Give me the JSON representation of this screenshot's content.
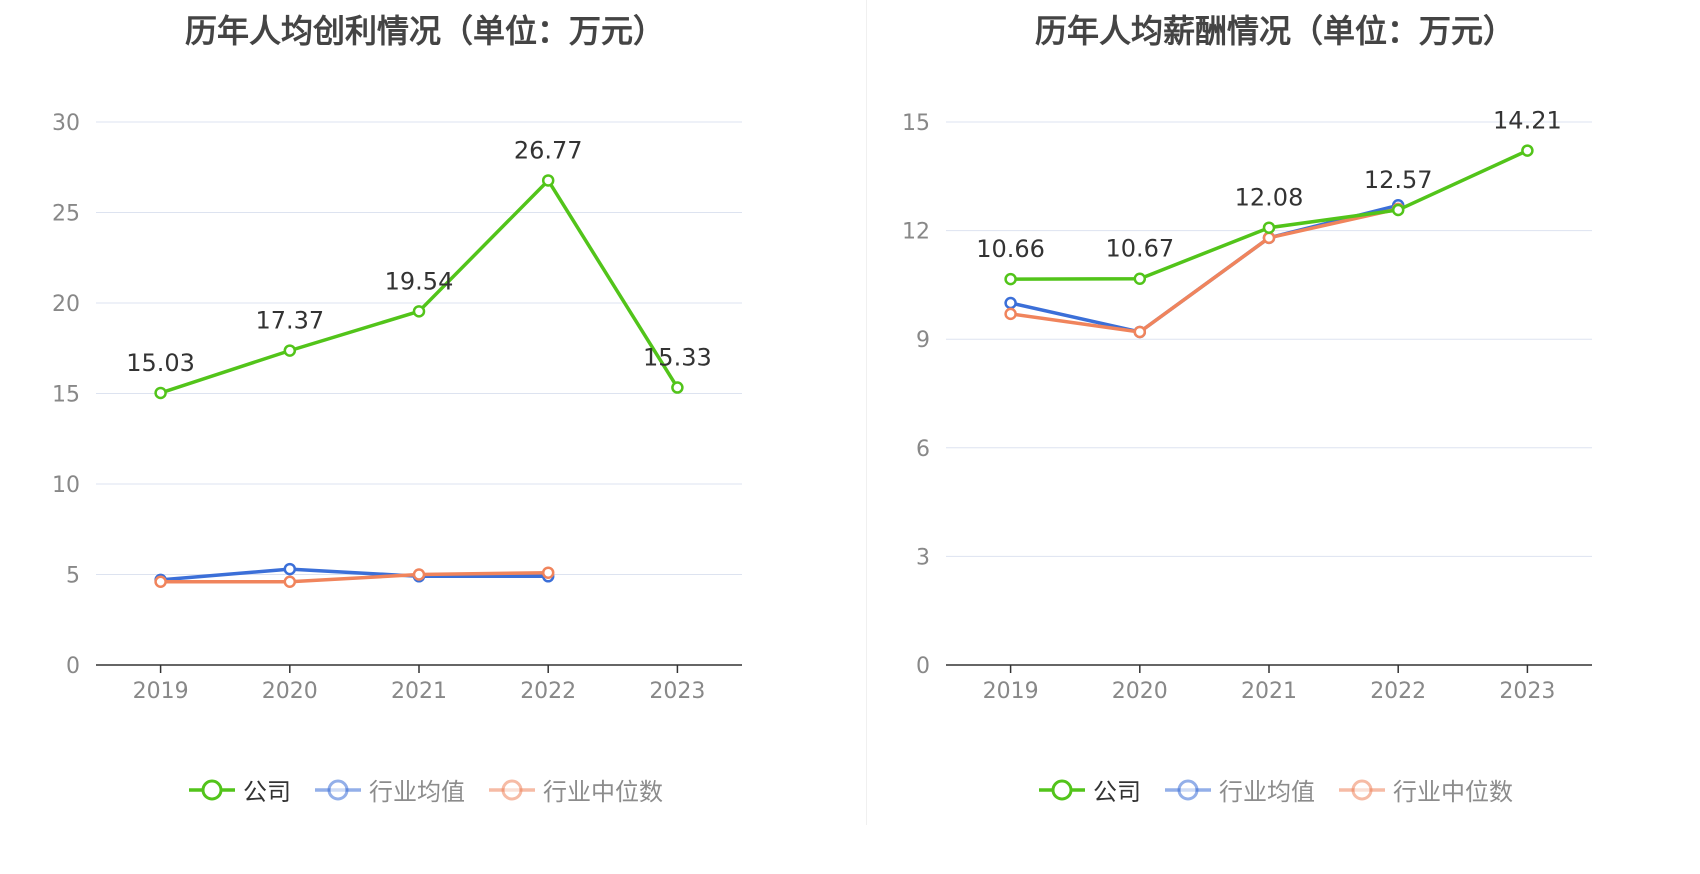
{
  "colors": {
    "company": "#52c41a",
    "avg": "#3b6fd8",
    "median": "#f0845c",
    "grid": "#dde3f0",
    "axis": "#333333",
    "tick": "#888888",
    "label": "#333333"
  },
  "chart_data": [
    {
      "type": "line",
      "title": "历年人均创利情况（单位：万元）",
      "categories": [
        "2019",
        "2020",
        "2021",
        "2022",
        "2023"
      ],
      "ylim": [
        0,
        30
      ],
      "yticks": [
        0,
        5,
        10,
        15,
        20,
        25,
        30
      ],
      "grid": true,
      "legend_position": "bottom",
      "series": [
        {
          "name": "公司",
          "key": "company",
          "values": [
            15.03,
            17.37,
            19.54,
            26.77,
            15.33
          ],
          "labels": [
            "15.03",
            "17.37",
            "19.54",
            "26.77",
            "15.33"
          ]
        },
        {
          "name": "行业均值",
          "key": "avg",
          "values": [
            4.7,
            5.3,
            4.9,
            4.9,
            null
          ]
        },
        {
          "name": "行业中位数",
          "key": "median",
          "values": [
            4.6,
            4.6,
            5.0,
            5.1,
            null
          ]
        }
      ]
    },
    {
      "type": "line",
      "title": "历年人均薪酬情况（单位：万元）",
      "categories": [
        "2019",
        "2020",
        "2021",
        "2022",
        "2023"
      ],
      "ylim": [
        0,
        15
      ],
      "yticks": [
        0,
        3,
        6,
        9,
        12,
        15
      ],
      "grid": true,
      "legend_position": "bottom",
      "series": [
        {
          "name": "公司",
          "key": "company",
          "values": [
            10.66,
            10.67,
            12.08,
            12.57,
            14.21
          ],
          "labels": [
            "10.66",
            "10.67",
            "12.08",
            "12.57",
            "14.21"
          ]
        },
        {
          "name": "行业均值",
          "key": "avg",
          "values": [
            10.0,
            9.2,
            11.8,
            12.7,
            null
          ]
        },
        {
          "name": "行业中位数",
          "key": "median",
          "values": [
            9.7,
            9.2,
            11.8,
            12.6,
            null
          ]
        }
      ]
    }
  ],
  "legend": [
    {
      "label": "公司",
      "key": "company",
      "active": true
    },
    {
      "label": "行业均值",
      "key": "avg",
      "active": false
    },
    {
      "label": "行业中位数",
      "key": "median",
      "active": false
    }
  ]
}
